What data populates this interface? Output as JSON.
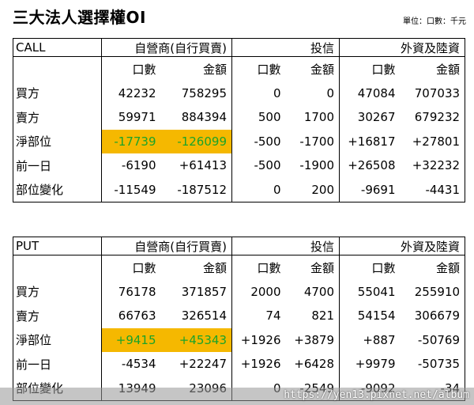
{
  "title": "三大法人選擇權OI",
  "unit_note": "單位：口數：千元",
  "call": {
    "label": "CALL",
    "groups": [
      "自營商(自行買賣)",
      "投信",
      "外資及陸資"
    ],
    "subheaders": [
      "口數",
      "金額",
      "口數",
      "金額",
      "口數",
      "金額"
    ],
    "rows": [
      {
        "label": "買方",
        "values": [
          "42232",
          "758295",
          "0",
          "0",
          "47084",
          "707033"
        ]
      },
      {
        "label": "賣方",
        "values": [
          "59971",
          "884394",
          "500",
          "1700",
          "30267",
          "679232"
        ]
      },
      {
        "label": "淨部位",
        "values": [
          "-17739",
          "-126099",
          "-500",
          "-1700",
          "+16817",
          "+27801"
        ]
      },
      {
        "label": "前一日",
        "values": [
          "-6190",
          "+61413",
          "-500",
          "-1900",
          "+26508",
          "+32232"
        ]
      },
      {
        "label": "部位變化",
        "values": [
          "-11549",
          "-187512",
          "0",
          "200",
          "-9691",
          "-4431"
        ]
      }
    ]
  },
  "put": {
    "label": "PUT",
    "groups": [
      "自營商(自行買賣)",
      "投信",
      "外資及陸資"
    ],
    "subheaders": [
      "口數",
      "金額",
      "口數",
      "金額",
      "口數",
      "金額"
    ],
    "rows": [
      {
        "label": "買方",
        "values": [
          "76178",
          "371857",
          "2000",
          "4700",
          "55041",
          "255910"
        ]
      },
      {
        "label": "賣方",
        "values": [
          "66763",
          "326514",
          "74",
          "821",
          "54154",
          "306679"
        ]
      },
      {
        "label": "淨部位",
        "values": [
          "+9415",
          "+45343",
          "+1926",
          "+3879",
          "+887",
          "-50769"
        ]
      },
      {
        "label": "前一日",
        "values": [
          "-4534",
          "+22247",
          "+1926",
          "+6428",
          "+9979",
          "-50735"
        ]
      },
      {
        "label": "部位變化",
        "values": [
          "13949",
          "23096",
          "0",
          "-2549",
          "-9092",
          "-34"
        ]
      }
    ]
  },
  "highlight_color": "#f5b800",
  "highlight_text_color": "#1aa32a",
  "watermark": "https://yen13.pixnet.net/album"
}
